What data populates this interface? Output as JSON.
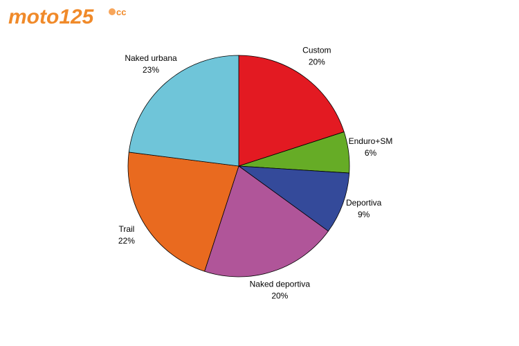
{
  "header": {
    "logo": "moto125",
    "logo_sup": "cc"
  },
  "chart_data": {
    "type": "pie",
    "categories": [
      "Custom",
      "Enduro+SM",
      "Deportiva",
      "Naked deportiva",
      "Trail",
      "Naked urbana"
    ],
    "values": [
      20,
      6,
      9,
      20,
      22,
      23
    ],
    "value_labels": [
      "20%",
      "6%",
      "9%",
      "20%",
      "22%",
      "23%"
    ],
    "colors": [
      "#e31a22",
      "#66ac26",
      "#344a9a",
      "#b05599",
      "#e96a1f",
      "#6fc5d9"
    ]
  }
}
